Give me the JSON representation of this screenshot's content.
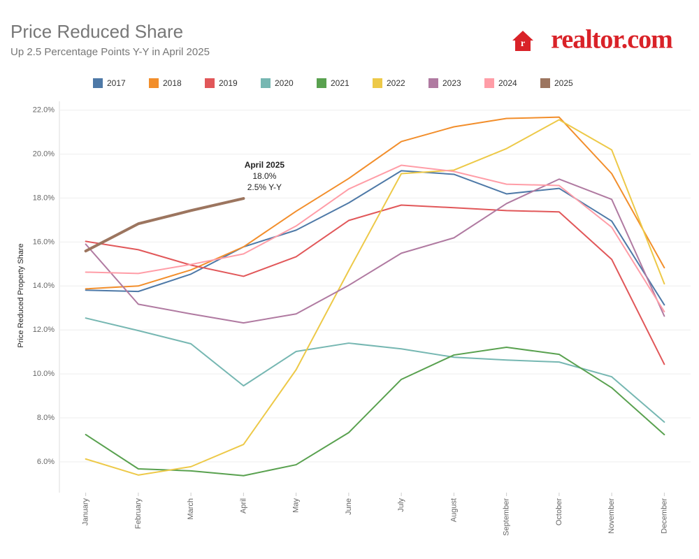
{
  "chart_data": {
    "type": "line",
    "title": "Price Reduced Share",
    "subtitle": "Up 2.5 Percentage Points Y-Y in April  2025",
    "logo": "realtor.com",
    "y_label": "Price Reduced Property Share",
    "categories": [
      "January",
      "February",
      "March",
      "April",
      "May",
      "June",
      "July",
      "August",
      "September",
      "October",
      "November",
      "December"
    ],
    "series": [
      {
        "name": "2017",
        "color": "#4e79a7",
        "values": [
          13.81,
          13.75,
          14.54,
          15.78,
          16.54,
          17.78,
          19.24,
          19.08,
          18.19,
          18.44,
          16.95,
          13.14
        ]
      },
      {
        "name": "2018",
        "color": "#f28e2b",
        "values": [
          13.87,
          14.0,
          14.73,
          15.78,
          17.4,
          18.89,
          20.57,
          21.24,
          21.62,
          21.68,
          19.11,
          14.83
        ]
      },
      {
        "name": "2019",
        "color": "#e15759",
        "values": [
          16.03,
          15.65,
          14.95,
          14.44,
          15.33,
          16.98,
          17.68,
          17.56,
          17.43,
          17.37,
          15.21,
          10.44
        ]
      },
      {
        "name": "2020",
        "color": "#76b7b2",
        "values": [
          12.54,
          11.97,
          11.37,
          9.46,
          11.02,
          11.4,
          11.14,
          10.76,
          10.63,
          10.54,
          9.87,
          7.81
        ]
      },
      {
        "name": "2021",
        "color": "#59a14f",
        "values": [
          7.24,
          5.68,
          5.59,
          5.37,
          5.87,
          7.33,
          9.75,
          10.86,
          11.21,
          10.89,
          9.37,
          7.24
        ]
      },
      {
        "name": "2022",
        "color": "#edc948",
        "values": [
          6.13,
          5.4,
          5.78,
          6.79,
          10.19,
          14.7,
          19.11,
          19.27,
          20.25,
          21.56,
          20.19,
          14.1
        ]
      },
      {
        "name": "2023",
        "color": "#b07aa1",
        "values": [
          15.9,
          13.17,
          12.73,
          12.32,
          12.73,
          14.03,
          15.49,
          16.19,
          17.75,
          18.86,
          17.94,
          12.63
        ]
      },
      {
        "name": "2024",
        "color": "#ff9da7",
        "values": [
          14.63,
          14.57,
          14.98,
          15.46,
          16.73,
          18.41,
          19.49,
          19.21,
          18.63,
          18.57,
          16.67,
          12.83
        ]
      },
      {
        "name": "2025",
        "color": "#9c755f",
        "line_width": 4,
        "values": [
          15.59,
          16.83,
          17.43,
          17.98,
          null,
          null,
          null,
          null,
          null,
          null,
          null,
          null
        ]
      }
    ],
    "annotation": {
      "lines": [
        "April 2025",
        "18.0%",
        "2.5% Y-Y"
      ]
    },
    "ylim": [
      4.6,
      22.4
    ],
    "yticks": [
      {
        "value": 6,
        "label": "6.0%"
      },
      {
        "value": 8,
        "label": "8.0%"
      },
      {
        "value": 10,
        "label": "10.0%"
      },
      {
        "value": 12,
        "label": "12.0%"
      },
      {
        "value": 14,
        "label": "14.0%"
      },
      {
        "value": 16,
        "label": "16.0%"
      },
      {
        "value": 18,
        "label": "18.0%"
      },
      {
        "value": 20,
        "label": "20.0%"
      },
      {
        "value": 22,
        "label": "22.0%"
      }
    ],
    "grid": true,
    "legend": "top"
  }
}
